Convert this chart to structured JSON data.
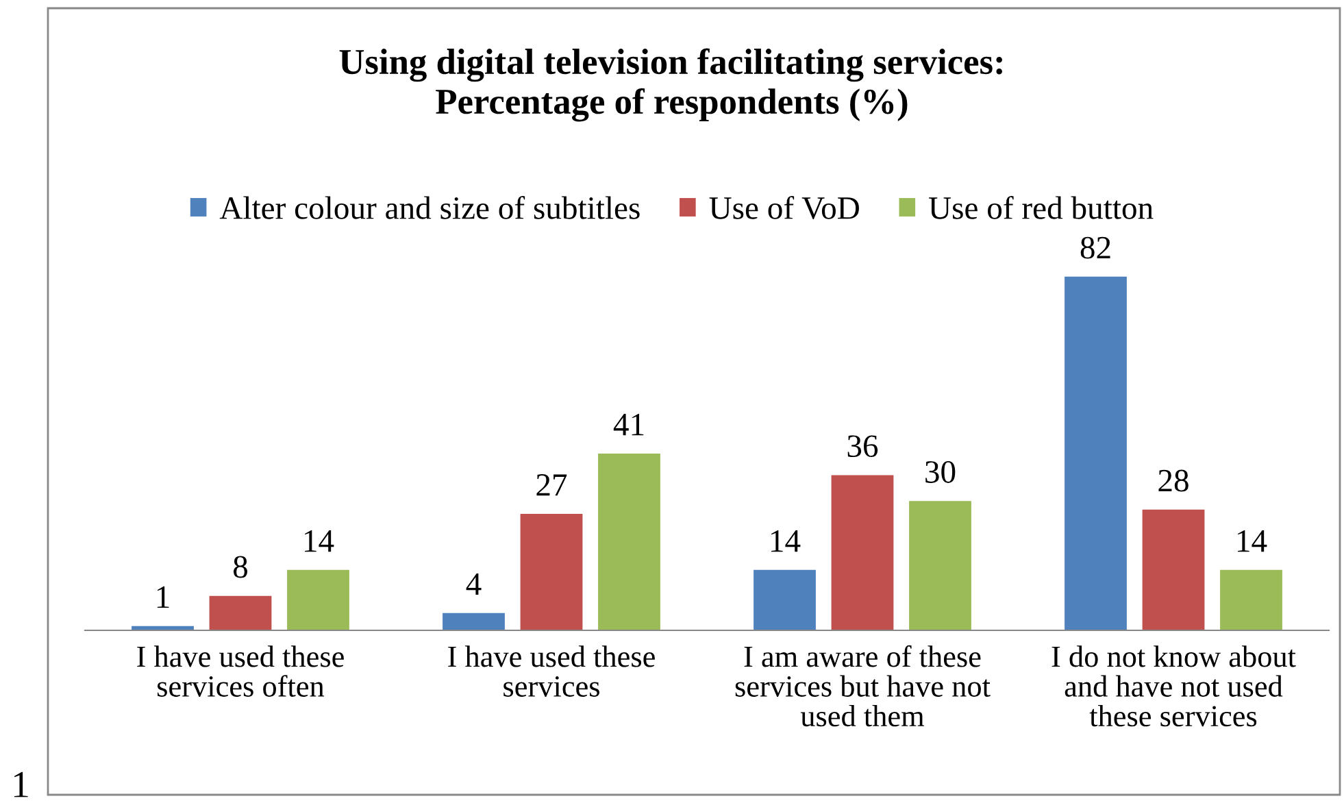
{
  "chart_data": {
    "type": "bar",
    "title": "Using digital television facilitating services:\nPercentage of respondents (%)",
    "categories": [
      "I have used these\nservices often",
      "I have used these\nservices",
      "I am aware of these\nservices but have not\nused them",
      "I do not know about\nand have not used\nthese services"
    ],
    "series": [
      {
        "name": "Alter colour and size of subtitles",
        "color": "#4f81bd",
        "values": [
          1,
          4,
          14,
          82
        ]
      },
      {
        "name": "Use of VoD",
        "color": "#c0504d",
        "values": [
          8,
          27,
          36,
          28
        ]
      },
      {
        "name": "Use of red button",
        "color": "#9bbb59",
        "values": [
          14,
          41,
          30,
          14
        ]
      }
    ],
    "data_labels": true,
    "legend": "top",
    "grid": false,
    "tick_labels": "x",
    "annotations": [
      "1"
    ]
  }
}
